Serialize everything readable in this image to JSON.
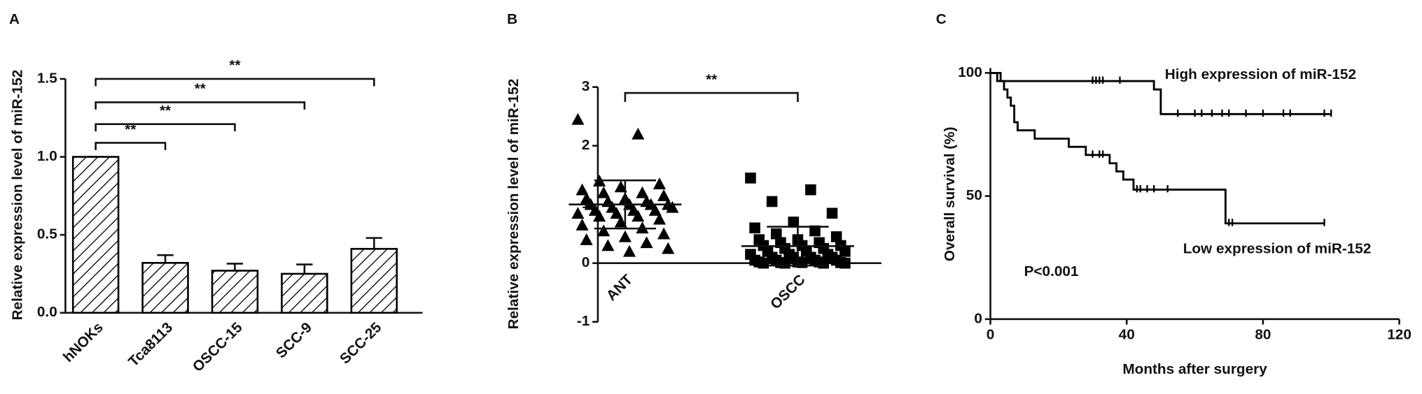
{
  "chart_data": [
    {
      "type": "bar",
      "panel": "A",
      "ylabel": "Relative expression level of miR-152",
      "categories": [
        "hNOKs",
        "Tca8113",
        "OSCC-15",
        "SCC-9",
        "SCC-25"
      ],
      "values": [
        1.0,
        0.32,
        0.27,
        0.25,
        0.41
      ],
      "errors": [
        0,
        0.05,
        0.045,
        0.06,
        0.07
      ],
      "pattern": "hatch",
      "color": "#000000",
      "ylim": [
        0,
        1.5
      ],
      "yticks": [
        {
          "value": 0,
          "label": "0.0"
        },
        0.5,
        {
          "value": 1,
          "label": "1.0"
        },
        1.5
      ],
      "significance": [
        {
          "label": "**",
          "y": 1.09
        },
        {
          "label": "**",
          "y": 1.21
        },
        {
          "label": "**",
          "y": 1.35
        },
        {
          "label": "**",
          "y": 1.5
        }
      ]
    },
    {
      "type": "scatter",
      "panel": "B",
      "ylabel": "Relative expression level of miR-152",
      "categories": [
        "ANT",
        "OSCC"
      ],
      "color": "#000000",
      "groups": [
        {
          "marker": "triangle",
          "mean": 1.0,
          "sd": 0.41,
          "values": [
            2.45,
            2.2,
            1.4,
            1.35,
            1.3,
            1.25,
            1.2,
            1.2,
            1.15,
            1.1,
            1.1,
            1.05,
            1.05,
            1.0,
            1.0,
            1.0,
            1.0,
            0.95,
            0.95,
            0.9,
            0.9,
            0.9,
            0.85,
            0.85,
            0.8,
            0.8,
            0.75,
            0.7,
            0.65,
            0.6,
            0.55,
            0.5,
            0.45,
            0.4,
            0.35,
            0.3,
            0.25,
            0.2
          ]
        },
        {
          "marker": "square",
          "mean": 0.29,
          "sd": 0.33,
          "values": [
            1.45,
            1.25,
            1.05,
            0.85,
            0.7,
            0.6,
            0.55,
            0.5,
            0.45,
            0.4,
            0.4,
            0.35,
            0.35,
            0.3,
            0.3,
            0.3,
            0.25,
            0.25,
            0.2,
            0.2,
            0.2,
            0.15,
            0.15,
            0.15,
            0.1,
            0.1,
            0.1,
            0.1,
            0.05,
            0.05,
            0.05,
            0.05,
            0.02,
            0.02,
            0.02,
            0.01,
            0.01,
            0.01,
            0.0,
            0.0,
            0.0,
            0.0
          ]
        }
      ],
      "ylim": [
        -1,
        3
      ],
      "yticks": [
        -1,
        0,
        1,
        2,
        3
      ],
      "significance": [
        {
          "label": "**",
          "y": 2.9
        }
      ]
    },
    {
      "type": "line",
      "step": true,
      "panel": "C",
      "ylabel": "Overall survival (%)",
      "xlabel": "Months after surgery",
      "xlim": [
        0,
        120
      ],
      "xticks": [
        0,
        40,
        80,
        120
      ],
      "ylim": [
        0,
        102
      ],
      "yticks": [
        0,
        50,
        100
      ],
      "series": [
        {
          "name": "High expression of miR-152",
          "color": "#000000",
          "x": [
            0,
            3,
            48,
            50,
            100
          ],
          "values": [
            100,
            96.7,
            93.3,
            83.3,
            83.3
          ],
          "censored": [
            30,
            31,
            32,
            33,
            38,
            55,
            60,
            62,
            65,
            68,
            70,
            75,
            80,
            86,
            88,
            98,
            100
          ]
        },
        {
          "name": "Low expression of miR-152",
          "color": "#000000",
          "x": [
            0,
            2,
            4,
            5,
            6,
            7,
            8,
            13,
            23,
            28,
            35,
            37,
            39,
            42,
            69,
            98
          ],
          "values": [
            100,
            96.7,
            93.3,
            90,
            86.7,
            80,
            76.7,
            73.3,
            70,
            66.7,
            63.3,
            60,
            56.7,
            52.6,
            38.9,
            38.9
          ],
          "censored": [
            30,
            32,
            33,
            43,
            44,
            46,
            48,
            52,
            70,
            71,
            98
          ]
        }
      ],
      "annotations": [
        "P<0.001"
      ]
    }
  ]
}
